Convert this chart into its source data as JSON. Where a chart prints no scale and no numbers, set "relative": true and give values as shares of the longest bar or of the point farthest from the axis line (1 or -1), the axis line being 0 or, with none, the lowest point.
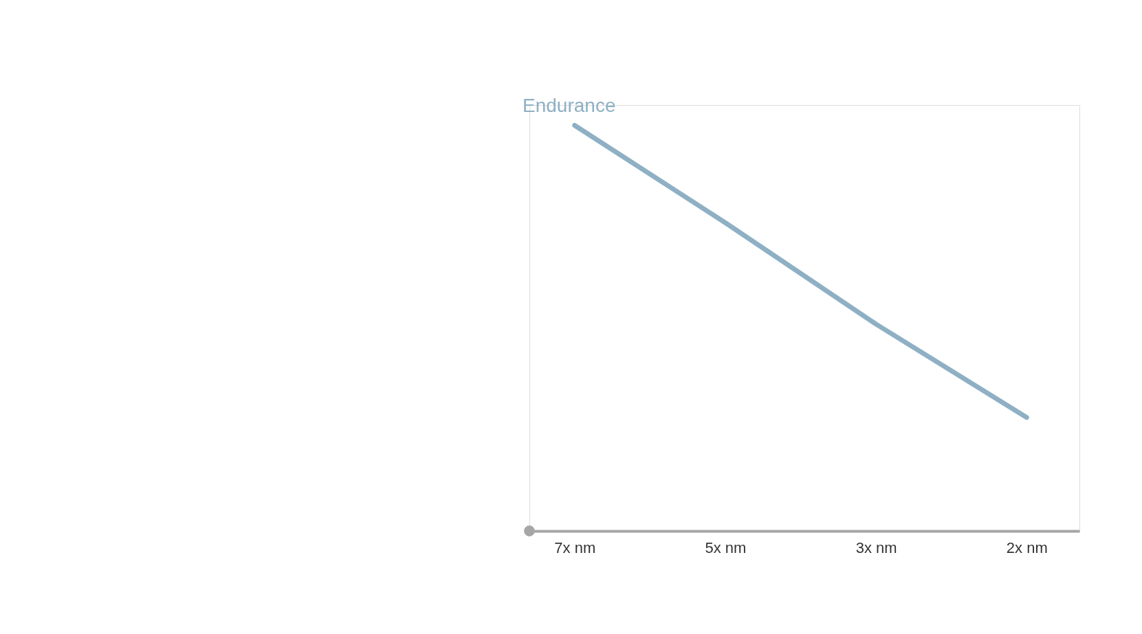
{
  "chart_data": {
    "type": "line",
    "relative": true,
    "categories": [
      "7x nm",
      "5x nm",
      "3x nm",
      "2x nm"
    ],
    "series": [
      {
        "name": "Endurance",
        "color": "#8fb0c4",
        "values": [
          1,
          0.76,
          0.51,
          0.28
        ]
      }
    ],
    "grid": false,
    "line_style": "solid"
  }
}
